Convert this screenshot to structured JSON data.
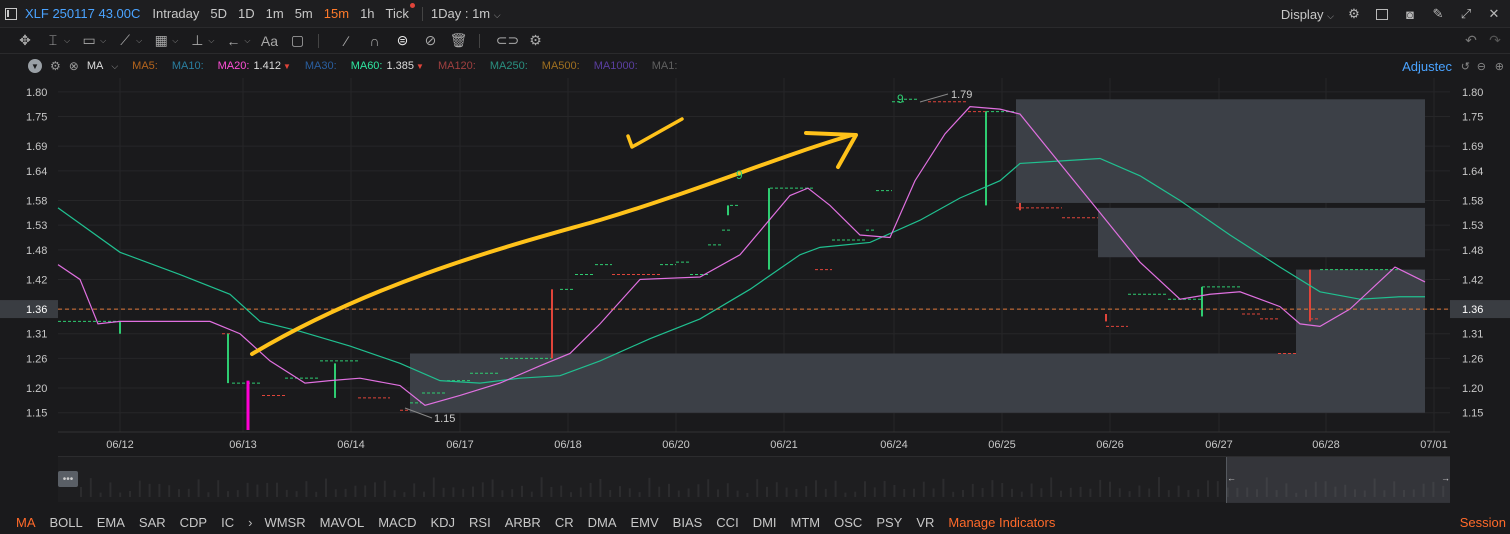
{
  "header": {
    "symbol": "XLF 250117 43.00C",
    "timeframes": [
      "Intraday",
      "5D",
      "1D",
      "1m",
      "5m",
      "15m",
      "1h",
      "Tick"
    ],
    "active_timeframe": "15m",
    "period_select": "1Day : 1m",
    "display_label": "Display"
  },
  "indicator_bar": {
    "name": "MA",
    "items": [
      {
        "label": "MA5:",
        "value": "",
        "color": "#b5651d"
      },
      {
        "label": "MA10:",
        "value": "",
        "color": "#2a7fa0"
      },
      {
        "label": "MA20:",
        "value": "1.412",
        "color": "#ff4fd8",
        "arrow": "▼"
      },
      {
        "label": "MA30:",
        "value": "",
        "color": "#2a5fa0"
      },
      {
        "label": "MA60:",
        "value": "1.385",
        "color": "#2ee6a0",
        "arrow": "▼"
      },
      {
        "label": "MA120:",
        "value": "",
        "color": "#a04040"
      },
      {
        "label": "MA250:",
        "value": "",
        "color": "#2a9080"
      },
      {
        "label": "MA500:",
        "value": "",
        "color": "#a07020"
      },
      {
        "label": "MA1000:",
        "value": "",
        "color": "#5a3fa0"
      },
      {
        "label": "MA1:",
        "value": "",
        "color": "#606060"
      }
    ],
    "adjusted_label": "Adjustec"
  },
  "chart_data": {
    "type": "line",
    "x_labels": [
      "06/12",
      "06/13",
      "06/14",
      "06/17",
      "06/18",
      "06/20",
      "06/21",
      "06/24",
      "06/25",
      "06/26",
      "06/27",
      "06/28",
      "07/01"
    ],
    "y_ticks": [
      "1.80",
      "1.75",
      "1.69",
      "1.64",
      "1.58",
      "1.53",
      "1.48",
      "1.42",
      "1.36",
      "1.31",
      "1.26",
      "1.20",
      "1.15"
    ],
    "ylim": [
      1.115,
      1.82
    ],
    "current_price": "1.36",
    "high_label": "1.79",
    "low_label": "1.15",
    "count_labels": [
      "9",
      "9"
    ],
    "colors": {
      "ma20": "#e070e0",
      "ma60": "#20c090",
      "up": "#e0443a",
      "down": "#2ecc71",
      "annotation": "#ffc21a",
      "price_line": "#e0783a",
      "zone": "#3c4047"
    }
  },
  "navigator": {
    "handle": "•••",
    "left_arrow": "←",
    "right_arrow": "→"
  },
  "bottom": {
    "indicators": [
      "MA",
      "BOLL",
      "EMA",
      "SAR",
      "CDP",
      "IC",
      "WMSR",
      "MAVOL",
      "MACD",
      "KDJ",
      "RSI",
      "ARBR",
      "CR",
      "DMA",
      "EMV",
      "BIAS",
      "CCI",
      "DMI",
      "MTM",
      "OSC",
      "PSY",
      "VR"
    ],
    "active": "MA",
    "manage_label": "Manage Indicators",
    "session_label": "Session"
  }
}
